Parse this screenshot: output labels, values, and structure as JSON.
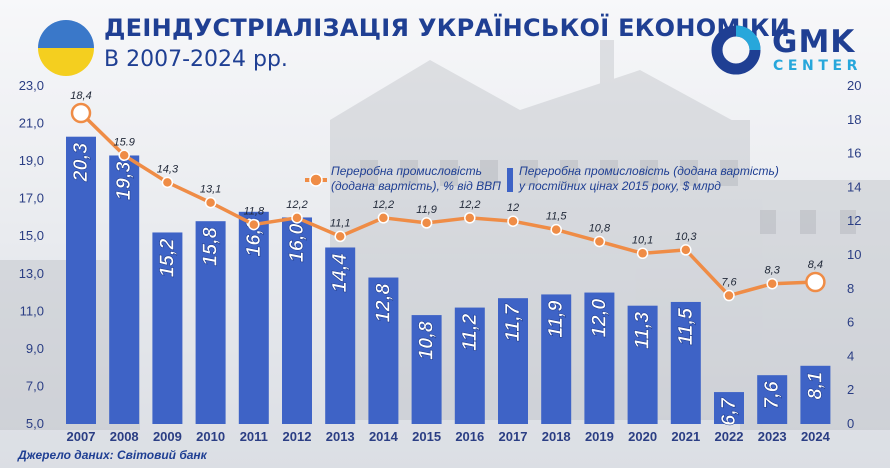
{
  "header": {
    "title": "ДЕІНДУСТРІАЛІЗАЦІЯ УКРАЇНСЬКОЇ ЕКОНОМІКИ",
    "subtitle": "В 2007-2024 рр."
  },
  "logo": {
    "line1": "GMK",
    "line2": "CENTER"
  },
  "source": {
    "label": "Джерело даних:",
    "value": "Світовий банк"
  },
  "colors": {
    "bar": "#3e63c6",
    "line": "#ef8c46",
    "text": "#1f3f93",
    "axis": "#2b3e84"
  },
  "chart_data": {
    "type": "bar",
    "categories": [
      "2007",
      "2008",
      "2009",
      "2010",
      "2011",
      "2012",
      "2013",
      "2014",
      "2015",
      "2016",
      "2017",
      "2018",
      "2019",
      "2020",
      "2021",
      "2022",
      "2023",
      "2024"
    ],
    "series": [
      {
        "name": "Переробна промисловість (додана вартість) у постійних цінах  2015 року, $ млрд",
        "type": "bar",
        "axis": "left",
        "values": [
          20.3,
          19.3,
          15.2,
          15.8,
          16.3,
          16.0,
          14.4,
          12.8,
          10.8,
          11.2,
          11.7,
          11.9,
          12.0,
          11.3,
          11.5,
          6.7,
          7.6,
          8.1
        ],
        "labels": [
          "20,3",
          "19,3",
          "15,2",
          "15,8",
          "16,3",
          "16,0",
          "14,4",
          "12,8",
          "10,8",
          "11,2",
          "11,7",
          "11,9",
          "12,0",
          "11,3",
          "11,5",
          "6,7",
          "7,6",
          "8,1"
        ]
      },
      {
        "name": "Переробна промисловість (додана вартість), % від ВВП",
        "type": "line",
        "axis": "right",
        "values": [
          18.4,
          15.9,
          14.3,
          13.1,
          11.8,
          12.2,
          11.1,
          12.2,
          11.9,
          12.2,
          12.0,
          11.5,
          10.8,
          10.1,
          10.3,
          7.6,
          8.3,
          8.4
        ],
        "labels": [
          "18,4",
          "15.9",
          "14,3",
          "13,1",
          "11,8",
          "12,2",
          "11,1",
          "12,2",
          "11,9",
          "12,2",
          "12",
          "11,5",
          "10,8",
          "10,1",
          "10,3",
          "7,6",
          "8,3",
          "8,4"
        ]
      }
    ],
    "legend_line": [
      "Переробна промисловість",
      "(додана вартість), % від ВВП"
    ],
    "legend_bar": [
      "Переробна промисловість (додана вартість)",
      "у постійних цінах  2015 року, $ млрд"
    ],
    "y_left": {
      "min": 5.0,
      "max": 23.0,
      "ticks": [
        "5,0",
        "7,0",
        "9,0",
        "11,0",
        "13,0",
        "15,0",
        "17,0",
        "19,0",
        "21,0",
        "23,0"
      ]
    },
    "y_right": {
      "min": 0,
      "max": 20,
      "ticks": [
        "0",
        "2",
        "4",
        "6",
        "8",
        "10",
        "12",
        "14",
        "16",
        "18",
        "20"
      ]
    },
    "highlight_points": [
      0,
      17
    ],
    "legend_position": "top-center",
    "grid": false
  }
}
